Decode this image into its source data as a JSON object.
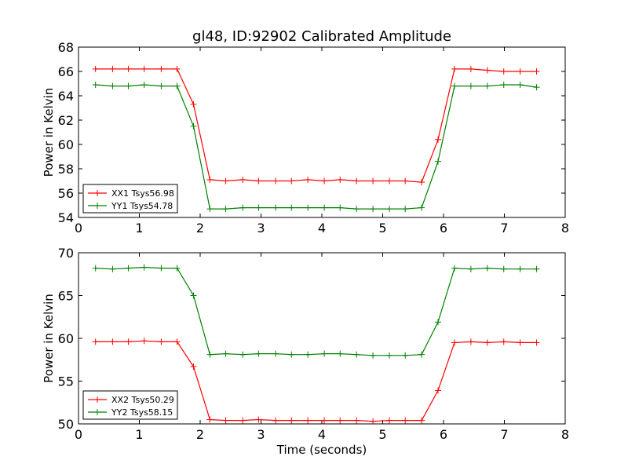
{
  "title": "gl48, ID:92902 Calibrated Amplitude",
  "chart_data": [
    {
      "type": "line",
      "ylabel": "Power in Kelvin",
      "xlabel": "",
      "xlim": [
        0,
        8
      ],
      "ylim": [
        54,
        68
      ],
      "xticks": [
        0,
        1,
        2,
        3,
        4,
        5,
        6,
        7,
        8
      ],
      "yticks": [
        54,
        56,
        58,
        60,
        62,
        64,
        66,
        68
      ],
      "legend_position": "lower-left",
      "x": [
        0.28,
        0.56,
        0.82,
        1.08,
        1.36,
        1.62,
        1.89,
        2.16,
        2.42,
        2.7,
        2.96,
        3.24,
        3.5,
        3.77,
        4.04,
        4.3,
        4.57,
        4.84,
        5.11,
        5.37,
        5.64,
        5.91,
        6.18,
        6.45,
        6.72,
        6.99,
        7.26,
        7.53
      ],
      "series": [
        {
          "name": "XX1 Tsys56.98",
          "color": "#ff0000",
          "values": [
            66.2,
            66.2,
            66.2,
            66.2,
            66.2,
            66.2,
            63.3,
            57.1,
            57.0,
            57.1,
            57.0,
            57.0,
            57.0,
            57.1,
            57.0,
            57.1,
            57.0,
            57.0,
            57.0,
            57.0,
            56.9,
            60.4,
            66.2,
            66.2,
            66.1,
            66.0,
            66.0,
            66.0
          ]
        },
        {
          "name": "YY1 Tsys54.78",
          "color": "#008000",
          "values": [
            64.9,
            64.8,
            64.8,
            64.9,
            64.8,
            64.8,
            61.5,
            54.7,
            54.7,
            54.8,
            54.8,
            54.8,
            54.8,
            54.8,
            54.8,
            54.8,
            54.7,
            54.7,
            54.7,
            54.7,
            54.8,
            58.6,
            64.8,
            64.8,
            64.8,
            64.9,
            64.9,
            64.7
          ]
        }
      ]
    },
    {
      "type": "line",
      "ylabel": "Power in Kelvin",
      "xlabel": "Time (seconds)",
      "xlim": [
        0,
        8
      ],
      "ylim": [
        50,
        70
      ],
      "xticks": [
        0,
        1,
        2,
        3,
        4,
        5,
        6,
        7,
        8
      ],
      "yticks": [
        50,
        55,
        60,
        65,
        70
      ],
      "legend_position": "lower-left",
      "x": [
        0.28,
        0.56,
        0.82,
        1.08,
        1.36,
        1.62,
        1.89,
        2.16,
        2.42,
        2.7,
        2.96,
        3.24,
        3.5,
        3.77,
        4.04,
        4.3,
        4.57,
        4.84,
        5.11,
        5.37,
        5.64,
        5.91,
        6.18,
        6.45,
        6.72,
        6.99,
        7.26,
        7.53
      ],
      "series": [
        {
          "name": "XX2 Tsys50.29",
          "color": "#ff0000",
          "values": [
            59.6,
            59.6,
            59.6,
            59.7,
            59.6,
            59.6,
            56.7,
            50.5,
            50.4,
            50.4,
            50.5,
            50.4,
            50.4,
            50.4,
            50.4,
            50.4,
            50.4,
            50.3,
            50.4,
            50.4,
            50.4,
            53.9,
            59.5,
            59.6,
            59.5,
            59.6,
            59.5,
            59.5
          ]
        },
        {
          "name": "YY2 Tsys58.15",
          "color": "#008000",
          "values": [
            68.2,
            68.1,
            68.2,
            68.3,
            68.2,
            68.2,
            65.0,
            58.1,
            58.2,
            58.1,
            58.2,
            58.2,
            58.1,
            58.1,
            58.2,
            58.2,
            58.1,
            58.0,
            58.0,
            58.0,
            58.1,
            61.9,
            68.2,
            68.1,
            68.2,
            68.1,
            68.1,
            68.1
          ]
        }
      ]
    }
  ]
}
